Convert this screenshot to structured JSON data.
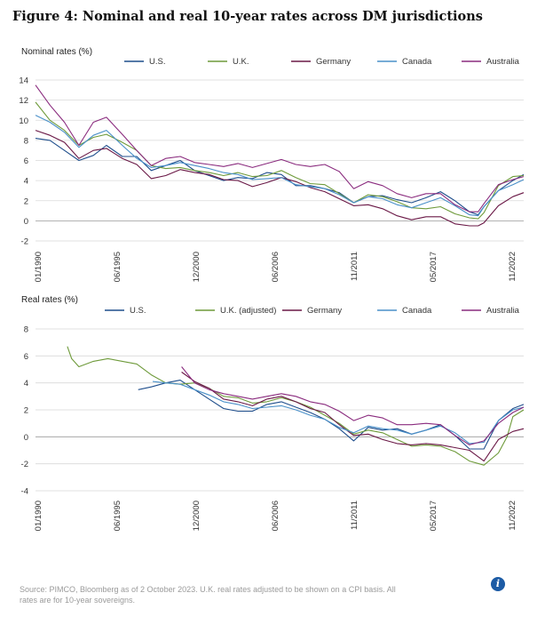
{
  "figure_title": "Figure 4: Nominal and real 10-year rates across DM jurisdictions",
  "source_note": "Source: PIMCO, Bloomberg as of 2 October 2023. U.K. real rates adjusted to be shown on a CPI basis. All rates are for 10-year sovereigns.",
  "info_icon": "info-icon",
  "colors": {
    "US": "#1f4e8c",
    "UK": "#6e9a3a",
    "Germany": "#6a1846",
    "Canada": "#4a90c9",
    "Australia": "#8a2b7e"
  },
  "chart_data": [
    {
      "type": "line",
      "panel_label": "Nominal rates (%)",
      "ylim": [
        -2,
        14
      ],
      "yticks": [
        -2,
        0,
        2,
        4,
        6,
        8,
        10,
        12,
        14
      ],
      "xtick_labels": [
        "01/1990",
        "06/1995",
        "12/2000",
        "06/2006",
        "11/2011",
        "05/2017",
        "11/2022"
      ],
      "xlim": [
        1990.0,
        2023.75
      ],
      "legend": [
        "U.S.",
        "U.K.",
        "Germany",
        "Canada",
        "Australia"
      ],
      "series": [
        {
          "name": "U.S.",
          "key": "US",
          "x": [
            1990,
            1991,
            1992,
            1993,
            1994,
            1994.9,
            1996,
            1997,
            1998,
            1999,
            2000,
            2001,
            2002,
            2003,
            2004,
            2005,
            2006,
            2007,
            2008,
            2009,
            2010,
            2011,
            2012,
            2013,
            2014,
            2015,
            2016,
            2017,
            2018,
            2019,
            2020,
            2020.6,
            2021,
            2022,
            2023,
            2023.75
          ],
          "y": [
            8.2,
            8.0,
            7.0,
            6.0,
            6.5,
            7.5,
            6.4,
            6.4,
            5.0,
            5.5,
            6.0,
            5.0,
            4.5,
            4.0,
            4.3,
            4.2,
            4.8,
            4.6,
            3.5,
            3.5,
            3.2,
            2.8,
            1.8,
            2.4,
            2.5,
            2.1,
            1.8,
            2.3,
            2.9,
            2.0,
            0.9,
            0.6,
            1.4,
            3.0,
            4.0,
            4.6
          ]
        },
        {
          "name": "U.K.",
          "key": "UK",
          "x": [
            1990,
            1991,
            1992,
            1993,
            1994,
            1994.9,
            1996,
            1997,
            1998,
            1999,
            2000,
            2001,
            2002,
            2003,
            2004,
            2005,
            2006,
            2007,
            2008,
            2009,
            2010,
            2011,
            2012,
            2013,
            2014,
            2015,
            2016,
            2017,
            2018,
            2019,
            2020,
            2020.6,
            2021,
            2022,
            2023,
            2023.75
          ],
          "y": [
            11.8,
            10.0,
            9.0,
            7.5,
            8.3,
            8.6,
            7.8,
            7.0,
            5.5,
            5.2,
            5.3,
            5.0,
            4.8,
            4.5,
            4.8,
            4.4,
            4.5,
            5.0,
            4.3,
            3.7,
            3.6,
            2.7,
            1.8,
            2.6,
            2.4,
            1.9,
            1.3,
            1.2,
            1.4,
            0.7,
            0.3,
            0.2,
            0.8,
            3.5,
            4.4,
            4.5
          ]
        },
        {
          "name": "Germany",
          "key": "Germany",
          "x": [
            1990,
            1991,
            1992,
            1993,
            1994,
            1994.9,
            1996,
            1997,
            1998,
            1999,
            2000,
            2001,
            2002,
            2003,
            2004,
            2005,
            2006,
            2007,
            2008,
            2009,
            2010,
            2011,
            2012,
            2013,
            2014,
            2015,
            2016,
            2017,
            2018,
            2019,
            2020,
            2020.6,
            2021,
            2022,
            2023,
            2023.75
          ],
          "y": [
            9.0,
            8.5,
            7.8,
            6.2,
            7.0,
            7.2,
            6.2,
            5.6,
            4.2,
            4.5,
            5.1,
            4.8,
            4.6,
            4.1,
            4.0,
            3.4,
            3.8,
            4.3,
            3.9,
            3.3,
            2.9,
            2.2,
            1.5,
            1.6,
            1.2,
            0.5,
            0.1,
            0.4,
            0.4,
            -0.3,
            -0.5,
            -0.5,
            -0.2,
            1.5,
            2.4,
            2.8
          ]
        },
        {
          "name": "Canada",
          "key": "Canada",
          "x": [
            1990,
            1991,
            1992,
            1993,
            1994,
            1994.9,
            1996,
            1997,
            1998,
            1999,
            2000,
            2001,
            2002,
            2003,
            2004,
            2005,
            2006,
            2007,
            2008,
            2009,
            2010,
            2011,
            2012,
            2013,
            2014,
            2015,
            2016,
            2017,
            2018,
            2019,
            2020,
            2020.6,
            2021,
            2022,
            2023,
            2023.75
          ],
          "y": [
            10.5,
            9.8,
            8.8,
            7.3,
            8.5,
            9.0,
            7.5,
            6.2,
            5.3,
            5.5,
            5.8,
            5.5,
            5.2,
            4.8,
            4.6,
            4.1,
            4.2,
            4.3,
            3.6,
            3.4,
            3.2,
            2.6,
            1.8,
            2.4,
            2.2,
            1.6,
            1.3,
            1.8,
            2.3,
            1.5,
            0.6,
            0.5,
            1.4,
            3.0,
            3.6,
            4.1
          ]
        },
        {
          "name": "Australia",
          "key": "Australia",
          "x": [
            1990,
            1991,
            1992,
            1993,
            1994,
            1994.9,
            1996,
            1997,
            1998,
            1999,
            2000,
            2001,
            2002,
            2003,
            2004,
            2005,
            2006,
            2007,
            2008,
            2009,
            2010,
            2011,
            2012,
            2013,
            2014,
            2015,
            2016,
            2017,
            2018,
            2019,
            2020,
            2020.6,
            2021,
            2022,
            2023,
            2023.75
          ],
          "y": [
            13.5,
            11.5,
            9.8,
            7.5,
            9.8,
            10.3,
            8.6,
            7.0,
            5.5,
            6.2,
            6.4,
            5.8,
            5.6,
            5.4,
            5.7,
            5.3,
            5.7,
            6.1,
            5.6,
            5.4,
            5.6,
            4.9,
            3.2,
            3.9,
            3.5,
            2.7,
            2.3,
            2.7,
            2.7,
            1.6,
            0.9,
            0.9,
            1.7,
            3.6,
            4.1,
            4.4
          ]
        }
      ]
    },
    {
      "type": "line",
      "panel_label": "Real rates (%)",
      "ylim": [
        -4,
        8
      ],
      "yticks": [
        -4,
        -2,
        0,
        2,
        4,
        6,
        8
      ],
      "xtick_labels": [
        "01/1990",
        "06/1995",
        "12/2000",
        "06/2006",
        "11/2011",
        "05/2017",
        "11/2022"
      ],
      "xlim": [
        1990.0,
        2023.75
      ],
      "legend": [
        "U.S.",
        "U.K. (adjusted)",
        "Germany",
        "Canada",
        "Australia"
      ],
      "series": [
        {
          "name": "U.S.",
          "key": "US",
          "x": [
            1997.1,
            1998,
            1999,
            2000,
            2001,
            2002,
            2003,
            2004,
            2005,
            2006,
            2007,
            2008,
            2009,
            2010,
            2011,
            2012,
            2013,
            2014,
            2015,
            2016,
            2017,
            2018,
            2019,
            2020,
            2021,
            2022,
            2023,
            2023.75
          ],
          "y": [
            3.5,
            3.7,
            4.0,
            4.2,
            3.5,
            2.8,
            2.1,
            1.9,
            1.9,
            2.4,
            2.6,
            2.2,
            1.8,
            1.3,
            0.6,
            -0.3,
            0.7,
            0.5,
            0.6,
            0.2,
            0.5,
            0.9,
            0.1,
            -0.9,
            -0.9,
            1.2,
            2.1,
            2.4
          ]
        },
        {
          "name": "U.K. (adjusted)",
          "key": "UK",
          "x": [
            1992.2,
            1992.5,
            1993,
            1994,
            1995,
            1996,
            1997,
            1998,
            1999,
            2000,
            2001,
            2002,
            2003,
            2004,
            2005,
            2006,
            2007,
            2008,
            2009,
            2010,
            2011,
            2012,
            2013,
            2014,
            2015,
            2016,
            2017,
            2018,
            2019,
            2020,
            2021,
            2022,
            2022.6,
            2023,
            2023.75
          ],
          "y": [
            6.7,
            5.8,
            5.2,
            5.6,
            5.8,
            5.6,
            5.4,
            4.6,
            4.0,
            3.9,
            4.0,
            3.6,
            3.0,
            2.9,
            2.5,
            2.6,
            2.9,
            2.6,
            2.2,
            1.6,
            1.0,
            0.2,
            0.5,
            0.3,
            -0.2,
            -0.7,
            -0.6,
            -0.7,
            -1.1,
            -1.8,
            -2.1,
            -1.2,
            0.0,
            1.5,
            2.0
          ]
        },
        {
          "name": "Germany",
          "key": "Germany",
          "x": [
            2000.1,
            2001,
            2002,
            2003,
            2004,
            2005,
            2006,
            2007,
            2008,
            2009,
            2010,
            2011,
            2012,
            2013,
            2014,
            2015,
            2016,
            2017,
            2018,
            2019,
            2020,
            2021,
            2022,
            2023,
            2023.75
          ],
          "y": [
            4.8,
            4.1,
            3.6,
            2.8,
            2.6,
            2.3,
            2.8,
            3.0,
            2.6,
            2.1,
            1.8,
            0.9,
            0.1,
            0.2,
            -0.2,
            -0.5,
            -0.6,
            -0.5,
            -0.6,
            -0.8,
            -1.0,
            -1.8,
            -0.2,
            0.4,
            0.6
          ]
        },
        {
          "name": "Canada",
          "key": "Canada",
          "x": [
            1998.1,
            1999,
            2000,
            2001,
            2002,
            2003,
            2004,
            2005,
            2006,
            2007,
            2008,
            2009,
            2010,
            2011,
            2012,
            2013,
            2014,
            2015,
            2016,
            2017,
            2018,
            2019,
            2020,
            2021,
            2022,
            2023,
            2023.75
          ],
          "y": [
            4.1,
            4.0,
            3.9,
            3.5,
            3.1,
            2.6,
            2.4,
            2.1,
            2.2,
            2.3,
            2.0,
            1.6,
            1.3,
            0.7,
            0.3,
            0.8,
            0.6,
            0.5,
            0.2,
            0.5,
            0.8,
            0.3,
            -0.5,
            -0.4,
            1.2,
            2.0,
            2.2
          ]
        },
        {
          "name": "Australia",
          "key": "Australia",
          "x": [
            2000.1,
            2001,
            2002,
            2003,
            2004,
            2005,
            2006,
            2007,
            2008,
            2009,
            2010,
            2011,
            2012,
            2013,
            2014,
            2015,
            2016,
            2017,
            2018,
            2019,
            2020,
            2021,
            2022,
            2023,
            2023.75
          ],
          "y": [
            5.2,
            4.0,
            3.5,
            3.2,
            3.0,
            2.8,
            3.0,
            3.2,
            3.0,
            2.6,
            2.4,
            1.9,
            1.2,
            1.6,
            1.4,
            0.9,
            0.9,
            1.0,
            0.9,
            0.1,
            -0.6,
            -0.3,
            1.0,
            1.8,
            2.2
          ]
        }
      ]
    }
  ]
}
